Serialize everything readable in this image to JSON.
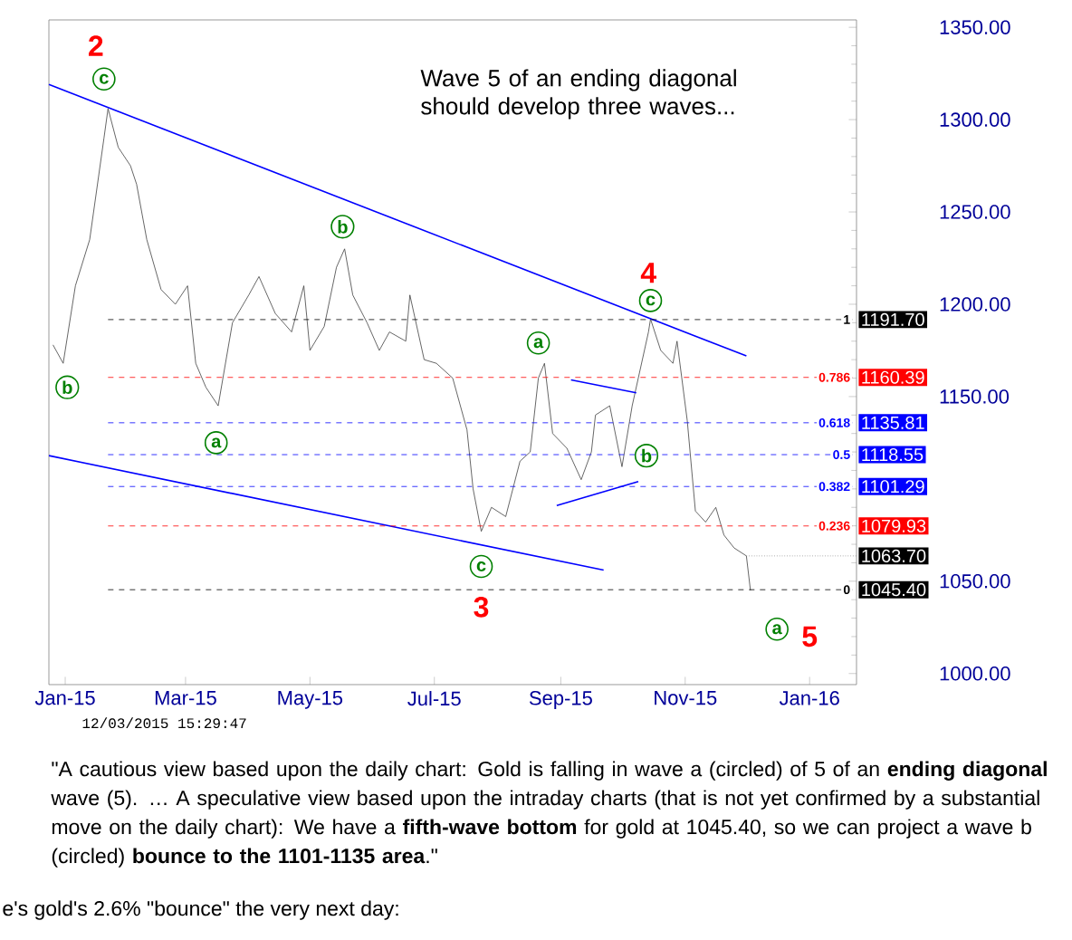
{
  "chart_data": {
    "type": "line",
    "xlim": [
      "2014-12-24",
      "2016-01-24"
    ],
    "ylim": [
      994,
      1354
    ],
    "xticks": [
      {
        "value": "2015-01-01",
        "label": "Jan-15"
      },
      {
        "value": "2015-03-01",
        "label": "Mar-15"
      },
      {
        "value": "2015-05-01",
        "label": "May-15"
      },
      {
        "value": "2015-07-01",
        "label": "Jul-15"
      },
      {
        "value": "2015-09-01",
        "label": "Sep-15"
      },
      {
        "value": "2015-11-01",
        "label": "Nov-15"
      },
      {
        "value": "2016-01-01",
        "label": "Jan-16"
      }
    ],
    "yticks": [
      {
        "value": 1000,
        "label": "1000.00"
      },
      {
        "value": 1050,
        "label": "1050.00"
      },
      {
        "value": 1100,
        "label": null
      },
      {
        "value": 1150,
        "label": "1150.00"
      },
      {
        "value": 1200,
        "label": "1200.00"
      },
      {
        "value": 1250,
        "label": "1250.00"
      },
      {
        "value": 1300,
        "label": "1300.00"
      },
      {
        "value": 1350,
        "label": "1350.00"
      }
    ],
    "series": [
      {
        "color": "#404040",
        "x": [
          "2014-12-26",
          "2014-12-31",
          "2015-01-06",
          "2015-01-13",
          "2015-01-20",
          "2015-01-22",
          "2015-01-27",
          "2015-02-02",
          "2015-02-05",
          "2015-02-10",
          "2015-02-17",
          "2015-02-24",
          "2015-03-02",
          "2015-03-06",
          "2015-03-11",
          "2015-03-17",
          "2015-03-24",
          "2015-04-01",
          "2015-04-06",
          "2015-04-14",
          "2015-04-22",
          "2015-04-28",
          "2015-05-01",
          "2015-05-08",
          "2015-05-14",
          "2015-05-18",
          "2015-05-22",
          "2015-05-29",
          "2015-06-04",
          "2015-06-09",
          "2015-06-17",
          "2015-06-19",
          "2015-06-26",
          "2015-07-02",
          "2015-07-10",
          "2015-07-17",
          "2015-07-20",
          "2015-07-24",
          "2015-07-29",
          "2015-08-05",
          "2015-08-12",
          "2015-08-17",
          "2015-08-21",
          "2015-08-24",
          "2015-08-28",
          "2015-09-04",
          "2015-09-11",
          "2015-09-16",
          "2015-09-18",
          "2015-09-25",
          "2015-10-01",
          "2015-10-06",
          "2015-10-14",
          "2015-10-15",
          "2015-10-20",
          "2015-10-26",
          "2015-10-28",
          "2015-11-02",
          "2015-11-06",
          "2015-11-11",
          "2015-11-16",
          "2015-11-20",
          "2015-11-25",
          "2015-12-01",
          "2015-12-03"
        ],
        "values": [
          1178,
          1168,
          1210,
          1235,
          1290,
          1306,
          1285,
          1275,
          1265,
          1235,
          1208,
          1200,
          1210,
          1168,
          1155,
          1145,
          1190,
          1205,
          1215,
          1195,
          1185,
          1210,
          1175,
          1188,
          1220,
          1230,
          1205,
          1190,
          1175,
          1185,
          1180,
          1205,
          1170,
          1168,
          1160,
          1132,
          1100,
          1077,
          1090,
          1085,
          1115,
          1120,
          1160,
          1168,
          1130,
          1122,
          1105,
          1120,
          1140,
          1145,
          1112,
          1145,
          1185,
          1192,
          1175,
          1168,
          1180,
          1137,
          1088,
          1082,
          1090,
          1075,
          1068,
          1063.7,
          1045
        ]
      },
      {
        "color": "#0000ff",
        "x": [
          "2014-12-24",
          "2015-12-01"
        ],
        "values": [
          1319,
          1172
        ]
      },
      {
        "color": "#0000ff",
        "x": [
          "2014-12-24",
          "2015-09-22"
        ],
        "values": [
          1118,
          1056
        ]
      },
      {
        "color": "#0000ff",
        "x": [
          "2015-09-06",
          "2015-10-08"
        ],
        "values": [
          1159,
          1152
        ]
      },
      {
        "color": "#0000ff",
        "x": [
          "2015-08-30",
          "2015-10-09"
        ],
        "values": [
          1091,
          1104
        ]
      }
    ],
    "ref_lines": [
      {
        "axis": "y",
        "value": 1191.7,
        "label": "1191.70",
        "color": "#000000",
        "line_style": "dashed"
      },
      {
        "axis": "y",
        "value": 1160.39,
        "label": "1160.39",
        "color": "#ff0000",
        "line_style": "dashed"
      },
      {
        "axis": "y",
        "value": 1135.81,
        "label": "1135.81",
        "color": "#0000ff",
        "line_style": "dashed"
      },
      {
        "axis": "y",
        "value": 1118.55,
        "label": "1118.55",
        "color": "#0000ff",
        "line_style": "dashed"
      },
      {
        "axis": "y",
        "value": 1101.29,
        "label": "1101.29",
        "color": "#0000ff",
        "line_style": "dashed"
      },
      {
        "axis": "y",
        "value": 1079.93,
        "label": "1079.93",
        "color": "#ff0000",
        "line_style": "dashed"
      },
      {
        "axis": "y",
        "value": 1045.4,
        "label": "1045.40",
        "color": "#000000",
        "line_style": "dashed"
      }
    ],
    "annotations": [
      "c",
      "b",
      "a",
      "b",
      "c",
      "a",
      "b",
      "c",
      "a",
      "2",
      "3",
      "4",
      "5",
      "1",
      "0.786",
      "0.618",
      "0.5",
      "0.382",
      "0.236",
      "0",
      {
        "text": "1063.70",
        "x": "2015-12-01",
        "y": 1063.7
      },
      "Wave 5 of an ending diagonal should develop three waves...",
      "12/03/2015 15:29:47",
      "\"A cautious view based upon the daily chart: Gold is falling in wave a (circled) of 5 of an **ending diagonal** wave (5). … A speculative view based upon the intraday charts (that is not yet confirmed by a substantial move on the daily chart): We have a **fifth-wave bottom** for gold at 1045.40, so we can project a wave b (circled) **bounce to the 1101-1135 area**.\"",
      "e's gold's 2.6% \"bounce\" the very next day:"
    ]
  }
}
